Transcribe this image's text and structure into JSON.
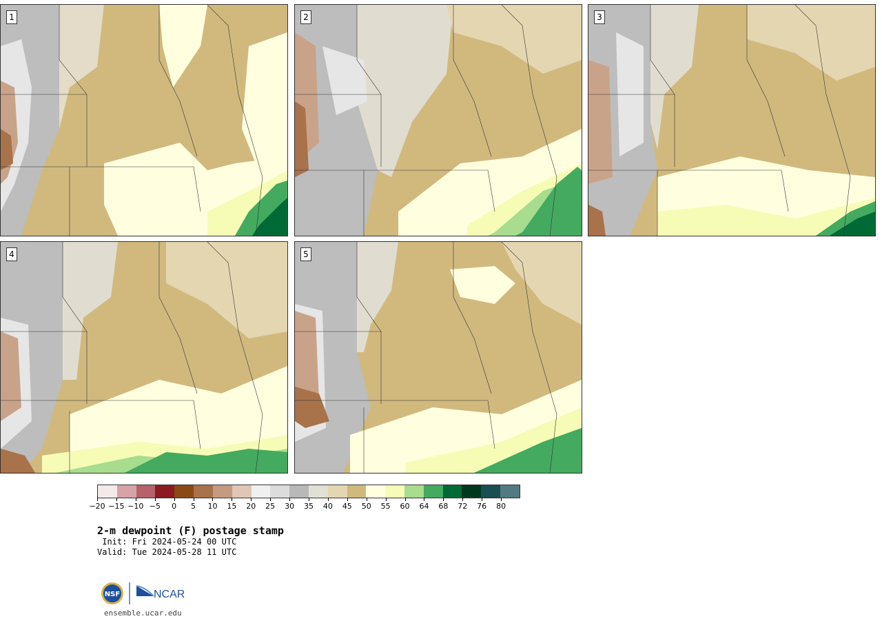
{
  "panels": [
    {
      "label": "1"
    },
    {
      "label": "2"
    },
    {
      "label": "3"
    },
    {
      "label": "4"
    },
    {
      "label": "5"
    }
  ],
  "colorbar": {
    "colors": [
      "#f5eaea",
      "#d6a3a8",
      "#b5626a",
      "#8b1a22",
      "#8a4a16",
      "#a8724a",
      "#c49b80",
      "#e0c6b4",
      "#f0f0f0",
      "#dcdcdc",
      "#b8b8b8",
      "#e0e0d4",
      "#e4d6b0",
      "#d0b97c",
      "#ffffe0",
      "#f6fcb6",
      "#a8dc8e",
      "#44aa60",
      "#006a36",
      "#00381e",
      "#1a4e52",
      "#527a82"
    ],
    "tick_labels": [
      "−20",
      "−15",
      "−10",
      "−5",
      "0",
      "5",
      "10",
      "15",
      "20",
      "25",
      "30",
      "35",
      "40",
      "45",
      "50",
      "55",
      "60",
      "64",
      "68",
      "72",
      "76",
      "80"
    ]
  },
  "title": "2-m dewpoint (F) postage stamp",
  "init": " Init: Fri 2024-05-24 00 UTC",
  "valid": "Valid: Tue 2024-05-28 11 UTC",
  "logo": {
    "left": "NSF",
    "right": "NCAR"
  },
  "site": "ensemble.ucar.edu"
}
